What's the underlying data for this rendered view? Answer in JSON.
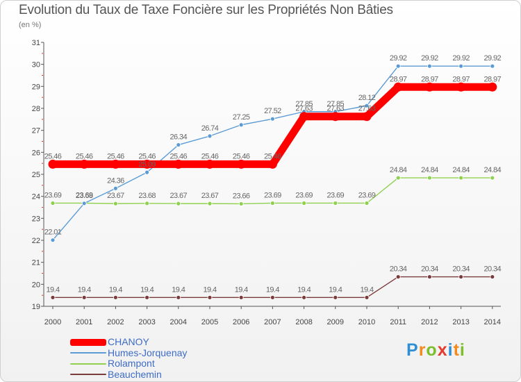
{
  "title": "Evolution du Taux de Taxe Foncière sur les Propriétés Non Bâties",
  "unit": "(en %)",
  "logo": {
    "text": "Proxiti",
    "letters": [
      "P",
      "r",
      "o",
      "x",
      "i",
      "t",
      "i"
    ],
    "colors": [
      "#2f8fd6",
      "#f28a1e",
      "#7bbf2a",
      "#e53b2f",
      "#2f8fd6",
      "#f28a1e",
      "#7bbf2a"
    ]
  },
  "chart_data": {
    "type": "line",
    "title": "Evolution du Taux de Taxe Foncière sur les Propriétés Non Bâties",
    "ylabel": "(en %)",
    "xlabel": "",
    "ylim": [
      19,
      31
    ],
    "yticks": [
      19,
      20,
      21,
      22,
      23,
      24,
      25,
      26,
      27,
      28,
      29,
      30,
      31
    ],
    "categories": [
      "2000",
      "2001",
      "2002",
      "2003",
      "2004",
      "2005",
      "2006",
      "2007",
      "2008",
      "2009",
      "2010",
      "2011",
      "2012",
      "2013",
      "2014"
    ],
    "grid": false,
    "legend": "bottom-left",
    "series": [
      {
        "name": "CHANOY",
        "color": "#ff0000",
        "values": [
          25.46,
          25.46,
          25.46,
          25.46,
          25.46,
          25.46,
          25.46,
          25.46,
          27.63,
          27.63,
          27.63,
          28.97,
          28.97,
          28.97,
          28.97
        ],
        "labels": [
          "25.46",
          "25.46",
          "25.46",
          "25.46",
          "25.46",
          "25.46",
          "25.46",
          "25.46",
          "27.63",
          "27.63",
          "27.63",
          "28.97",
          "28.97",
          "28.97",
          "28.97"
        ]
      },
      {
        "name": "Humes-Jorquenay",
        "color": "#5b9bd5",
        "values": [
          22.01,
          23.68,
          24.36,
          25.09,
          26.34,
          26.74,
          27.25,
          27.52,
          27.85,
          27.85,
          28.12,
          29.92,
          29.92,
          29.92,
          29.92
        ],
        "labels": [
          "22.01",
          "23.68",
          "24.36",
          "25.09",
          "26.34",
          "26.74",
          "27.25",
          "27.52",
          "27.85",
          "27.85",
          "28.12",
          "29.92",
          "29.92",
          "29.92",
          "29.92"
        ]
      },
      {
        "name": "Rolampont",
        "color": "#8fd14f",
        "values": [
          23.69,
          23.69,
          23.67,
          23.68,
          23.67,
          23.67,
          23.66,
          23.69,
          23.69,
          23.69,
          23.69,
          24.84,
          24.84,
          24.84,
          24.84
        ],
        "labels": [
          "23.69",
          "23.69",
          "23.67",
          "23.68",
          "23.67",
          "23.67",
          "23.66",
          "23.69",
          "23.69",
          "23.69",
          "23.69",
          "24.84",
          "24.84",
          "24.84",
          "24.84"
        ]
      },
      {
        "name": "Beauchemin",
        "color": "#7a3b3b",
        "values": [
          19.4,
          19.4,
          19.4,
          19.4,
          19.4,
          19.4,
          19.4,
          19.4,
          19.4,
          19.4,
          19.4,
          20.34,
          20.34,
          20.34,
          20.34
        ],
        "labels": [
          "19.4",
          "19.4",
          "19.4",
          "19.4",
          "19.4",
          "19.4",
          "19.4",
          "19.4",
          "19.4",
          "19.4",
          "19.4",
          "20.34",
          "20.34",
          "20.34",
          "20.34"
        ]
      }
    ]
  }
}
